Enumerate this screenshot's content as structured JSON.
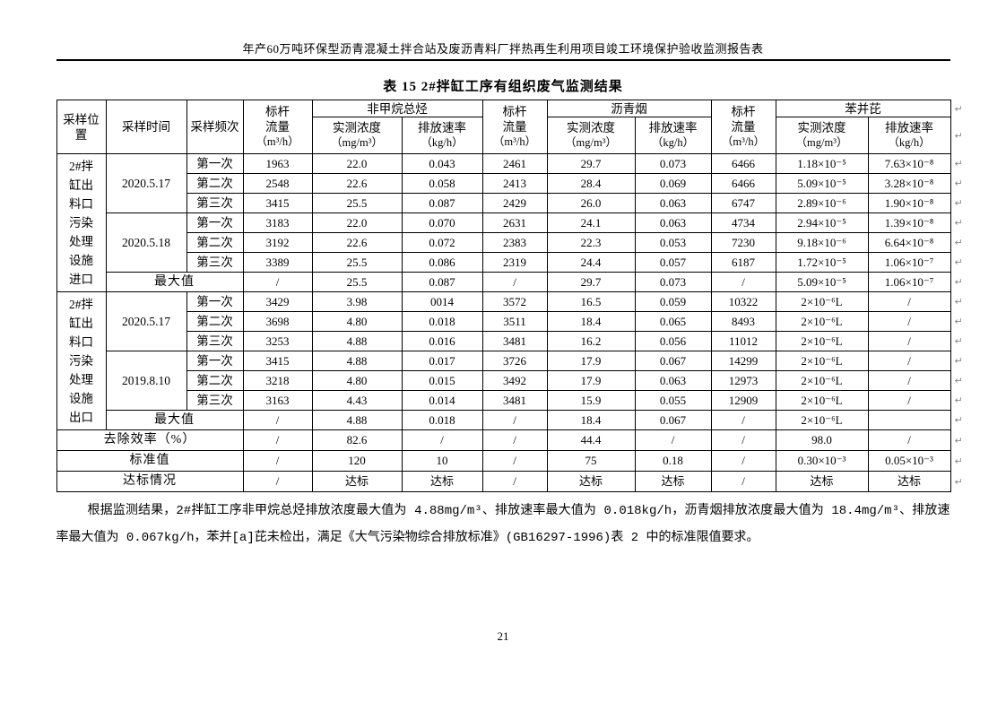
{
  "page": {
    "header_title": "年产60万吨环保型沥青混凝土拌合站及废沥青料厂拌热再生利用项目竣工环境保护验收监测报告表",
    "table_title": "表 15  2#拌缸工序有组织废气监测结果",
    "page_number": "21"
  },
  "icons": {
    "paragraph_mark": "↵"
  },
  "table": {
    "header": {
      "col_location": "采样位置",
      "col_time": "采样时间",
      "col_freq": "采样频次",
      "col_flow": "标杆流量",
      "col_flow_unit": "（m³/h）",
      "group_nmhc": "非甲烷总烃",
      "group_asphalt": "沥青烟",
      "group_bap": "苯并芘",
      "col_conc": "实测浓度",
      "col_conc_unit": "（mg/m³）",
      "col_rate": "排放速率",
      "col_rate_unit": "（kg/h）"
    },
    "sections": [
      {
        "location": "2#拌缸出料口污染处理设施进口",
        "groups": [
          {
            "date": "2020.5.17",
            "rows": [
              {
                "freq": "第一次",
                "cells": [
                  "1963",
                  "22.0",
                  "0.043",
                  "2461",
                  "29.7",
                  "0.073",
                  "6466",
                  "1.18×10⁻⁵",
                  "7.63×10⁻⁸"
                ]
              },
              {
                "freq": "第二次",
                "cells": [
                  "2548",
                  "22.6",
                  "0.058",
                  "2413",
                  "28.4",
                  "0.069",
                  "6466",
                  "5.09×10⁻⁵",
                  "3.28×10⁻⁸"
                ]
              },
              {
                "freq": "第三次",
                "cells": [
                  "3415",
                  "25.5",
                  "0.087",
                  "2429",
                  "26.0",
                  "0.063",
                  "6747",
                  "2.89×10⁻⁶",
                  "1.90×10⁻⁸"
                ]
              }
            ]
          },
          {
            "date": "2020.5.18",
            "rows": [
              {
                "freq": "第一次",
                "cells": [
                  "3183",
                  "22.0",
                  "0.070",
                  "2631",
                  "24.1",
                  "0.063",
                  "4734",
                  "2.94×10⁻⁵",
                  "1.39×10⁻⁸"
                ]
              },
              {
                "freq": "第二次",
                "cells": [
                  "3192",
                  "22.6",
                  "0.072",
                  "2383",
                  "22.3",
                  "0.053",
                  "7230",
                  "9.18×10⁻⁶",
                  "6.64×10⁻⁸"
                ]
              },
              {
                "freq": "第三次",
                "cells": [
                  "3389",
                  "25.5",
                  "0.086",
                  "2319",
                  "24.4",
                  "0.057",
                  "6187",
                  "1.72×10⁻⁵",
                  "1.06×10⁻⁷"
                ]
              }
            ]
          }
        ],
        "max_label": "最大值",
        "max_cells": [
          "/",
          "25.5",
          "0.087",
          "/",
          "29.7",
          "0.073",
          "/",
          "5.09×10⁻⁵",
          "1.06×10⁻⁷"
        ]
      },
      {
        "location": "2#拌缸出料口污染处理设施出口",
        "groups": [
          {
            "date": "2020.5.17",
            "rows": [
              {
                "freq": "第一次",
                "cells": [
                  "3429",
                  "3.98",
                  "0014",
                  "3572",
                  "16.5",
                  "0.059",
                  "10322",
                  "2×10⁻⁶L",
                  "/"
                ]
              },
              {
                "freq": "第二次",
                "cells": [
                  "3698",
                  "4.80",
                  "0.018",
                  "3511",
                  "18.4",
                  "0.065",
                  "8493",
                  "2×10⁻⁶L",
                  "/"
                ]
              },
              {
                "freq": "第三次",
                "cells": [
                  "3253",
                  "4.88",
                  "0.016",
                  "3481",
                  "16.2",
                  "0.056",
                  "11012",
                  "2×10⁻⁶L",
                  "/"
                ]
              }
            ]
          },
          {
            "date": "2019.8.10",
            "rows": [
              {
                "freq": "第一次",
                "cells": [
                  "3415",
                  "4.88",
                  "0.017",
                  "3726",
                  "17.9",
                  "0.067",
                  "14299",
                  "2×10⁻⁶L",
                  "/"
                ]
              },
              {
                "freq": "第二次",
                "cells": [
                  "3218",
                  "4.80",
                  "0.015",
                  "3492",
                  "17.9",
                  "0.063",
                  "12973",
                  "2×10⁻⁶L",
                  "/"
                ]
              },
              {
                "freq": "第三次",
                "cells": [
                  "3163",
                  "4.43",
                  "0.014",
                  "3481",
                  "15.9",
                  "0.055",
                  "12909",
                  "2×10⁻⁶L",
                  "/"
                ]
              }
            ]
          }
        ],
        "max_label": "最大值",
        "max_cells": [
          "/",
          "4.88",
          "0.018",
          "/",
          "18.4",
          "0.067",
          "/",
          "2×10⁻⁶L",
          ""
        ]
      }
    ],
    "footer_rows": [
      {
        "label": "去除效率（%）",
        "cells": [
          "/",
          "82.6",
          "/",
          "/",
          "44.4",
          "/",
          "/",
          "98.0",
          "/"
        ]
      },
      {
        "label": "标准值",
        "cells": [
          "/",
          "120",
          "10",
          "/",
          "75",
          "0.18",
          "/",
          "0.30×10⁻³",
          "0.05×10⁻³"
        ]
      },
      {
        "label": "达标情况",
        "cells": [
          "/",
          "达标",
          "达标",
          "/",
          "达标",
          "达标",
          "/",
          "达标",
          "达标"
        ]
      }
    ]
  },
  "note": {
    "text": "根据监测结果，2#拌缸工序非甲烷总烃排放浓度最大值为 4.88mg/m³、排放速率最大值为 0.018kg/h，沥青烟排放浓度最大值为 18.4mg/m³、排放速率最大值为 0.067kg/h，苯并[a]芘未检出，满足《大气污染物综合排放标准》(GB16297-1996)表 2 中的标准限值要求。"
  }
}
